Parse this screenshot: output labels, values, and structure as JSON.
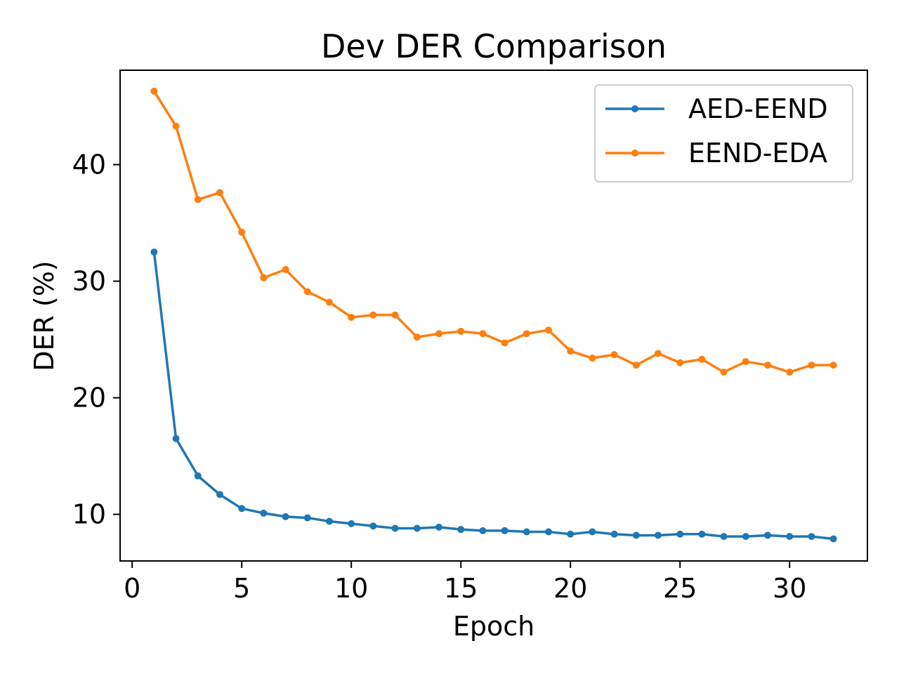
{
  "chart_data": {
    "type": "line",
    "title": "Dev DER Comparison",
    "xlabel": "Epoch",
    "ylabel": "DER (%)",
    "xlim": [
      -0.55,
      33.55
    ],
    "ylim": [
      6.0,
      48.1
    ],
    "xticks": [
      0,
      5,
      10,
      15,
      20,
      25,
      30
    ],
    "yticks": [
      10,
      20,
      30,
      40
    ],
    "grid": false,
    "legend_position": "top-right",
    "x": [
      1,
      2,
      3,
      4,
      5,
      6,
      7,
      8,
      9,
      10,
      11,
      12,
      13,
      14,
      15,
      16,
      17,
      18,
      19,
      20,
      21,
      22,
      23,
      24,
      25,
      26,
      27,
      28,
      29,
      30,
      31,
      32
    ],
    "series": [
      {
        "name": "AED-EEND",
        "color": "#1f77b4",
        "values": [
          32.5,
          16.5,
          13.3,
          11.7,
          10.5,
          10.1,
          9.8,
          9.7,
          9.4,
          9.2,
          9.0,
          8.8,
          8.8,
          8.9,
          8.7,
          8.6,
          8.6,
          8.5,
          8.5,
          8.3,
          8.5,
          8.3,
          8.2,
          8.2,
          8.3,
          8.3,
          8.1,
          8.1,
          8.2,
          8.1,
          8.1,
          7.9
        ]
      },
      {
        "name": "EEND-EDA",
        "color": "#ff7f0e",
        "values": [
          46.3,
          43.3,
          37.0,
          37.6,
          34.2,
          30.3,
          31.0,
          29.1,
          28.2,
          26.9,
          27.1,
          27.1,
          25.2,
          25.5,
          25.7,
          25.5,
          24.7,
          25.5,
          25.8,
          24.0,
          23.4,
          23.7,
          22.8,
          23.8,
          23.0,
          23.3,
          22.2,
          23.1,
          22.8,
          22.2,
          22.8,
          22.8
        ]
      }
    ]
  }
}
